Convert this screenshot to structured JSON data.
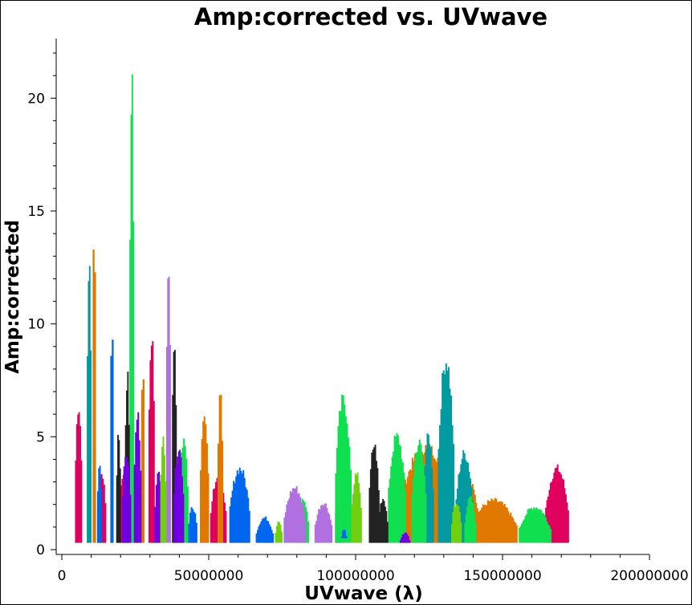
{
  "chart_data": {
    "type": "scatter",
    "title": "Amp:corrected vs. UVwave",
    "xlabel": "UVwave (λ)",
    "ylabel": "Amp:corrected",
    "xlim": [
      0,
      200000000
    ],
    "ylim": [
      0,
      22.5
    ],
    "x_ticks": [
      "0",
      "50000000",
      "100000000",
      "150000000",
      "200000000"
    ],
    "x_tick_values": [
      0,
      50000000,
      100000000,
      150000000,
      200000000
    ],
    "y_ticks": [
      "0",
      "5",
      "10",
      "15",
      "20"
    ],
    "y_tick_values": [
      0,
      5,
      10,
      15,
      20
    ],
    "grid": false,
    "legend": "none",
    "series": [
      {
        "color": "#e0005e",
        "clusters": [
          [
            4500000,
            6800000,
            0.3,
            6.8
          ],
          [
            12000000,
            15000000,
            0.3,
            3.6
          ],
          [
            19500000,
            22000000,
            0.3,
            3.5
          ],
          [
            29500000,
            31500000,
            0.3,
            10.2
          ],
          [
            50500000,
            56000000,
            0.3,
            3.4
          ],
          [
            52500000,
            55000000,
            0.3,
            3.0
          ],
          [
            93000000,
            96000000,
            0.3,
            2.8
          ],
          [
            164500000,
            172500000,
            0.3,
            3.8
          ]
        ]
      },
      {
        "color": "#e07800",
        "clusters": [
          [
            10500000,
            11500000,
            0.3,
            15.9
          ],
          [
            27000000,
            28000000,
            0.3,
            9.0
          ],
          [
            47000000,
            50000000,
            0.3,
            6.0
          ],
          [
            53000000,
            54800000,
            0.3,
            7.7
          ],
          [
            115000000,
            133000000,
            0.3,
            4.8
          ],
          [
            134000000,
            142000000,
            0.3,
            3.3
          ],
          [
            139000000,
            155000000,
            0.3,
            2.3
          ]
        ]
      },
      {
        "color": "#009aa0",
        "clusters": [
          [
            8500000,
            10000000,
            0.3,
            13.2
          ],
          [
            123000000,
            126500000,
            0.3,
            5.3
          ],
          [
            128000000,
            133500000,
            0.3,
            8.9
          ],
          [
            134000000,
            140000000,
            0.3,
            4.5
          ]
        ]
      },
      {
        "color": "#10e050",
        "clusters": [
          [
            23000000,
            24500000,
            0.3,
            22.5
          ],
          [
            40000000,
            43000000,
            0.3,
            5.3
          ],
          [
            80000000,
            84000000,
            0.3,
            2.4
          ],
          [
            93000000,
            98500000,
            0.3,
            7.0
          ],
          [
            111000000,
            117000000,
            0.3,
            5.3
          ],
          [
            119000000,
            124000000,
            0.3,
            5.0
          ],
          [
            137000000,
            141000000,
            0.3,
            2.4
          ],
          [
            155500000,
            166500000,
            0.3,
            2.0
          ]
        ]
      },
      {
        "color": "#0066ee",
        "clusters": [
          [
            16500000,
            17500000,
            0.3,
            11.3
          ],
          [
            12000000,
            13500000,
            0.3,
            4.2
          ],
          [
            43000000,
            46000000,
            0.3,
            2.0
          ],
          [
            57000000,
            64000000,
            0.3,
            3.8
          ],
          [
            66000000,
            72000000,
            0.3,
            1.5
          ],
          [
            95000000,
            97000000,
            0.5,
            1.0
          ]
        ]
      },
      {
        "color": "#b070e0",
        "clusters": [
          [
            35500000,
            37000000,
            0.3,
            13.3
          ],
          [
            75500000,
            83000000,
            0.3,
            2.9
          ],
          [
            86000000,
            92000000,
            0.3,
            2.2
          ]
        ]
      },
      {
        "color": "#222222",
        "clusters": [
          [
            18500000,
            20000000,
            0.3,
            5.4
          ],
          [
            21500000,
            23000000,
            0.3,
            8.2
          ],
          [
            37500000,
            39000000,
            0.3,
            10.0
          ],
          [
            104500000,
            108000000,
            0.3,
            4.9
          ],
          [
            107500000,
            111000000,
            0.3,
            2.4
          ]
        ]
      },
      {
        "color": "#7000e0",
        "clusters": [
          [
            20500000,
            23500000,
            0.3,
            4.5
          ],
          [
            24500000,
            27000000,
            0.3,
            6.3
          ],
          [
            31500000,
            34500000,
            0.3,
            3.6
          ],
          [
            38000000,
            41500000,
            0.3,
            4.8
          ],
          [
            115000000,
            118500000,
            0.3,
            0.8
          ]
        ]
      },
      {
        "color": "#70d010",
        "clusters": [
          [
            33500000,
            35500000,
            0.3,
            5.2
          ],
          [
            72500000,
            75000000,
            0.3,
            1.3
          ],
          [
            98500000,
            102000000,
            0.3,
            3.6
          ],
          [
            132500000,
            136000000,
            0.3,
            2.2
          ]
        ]
      }
    ]
  }
}
